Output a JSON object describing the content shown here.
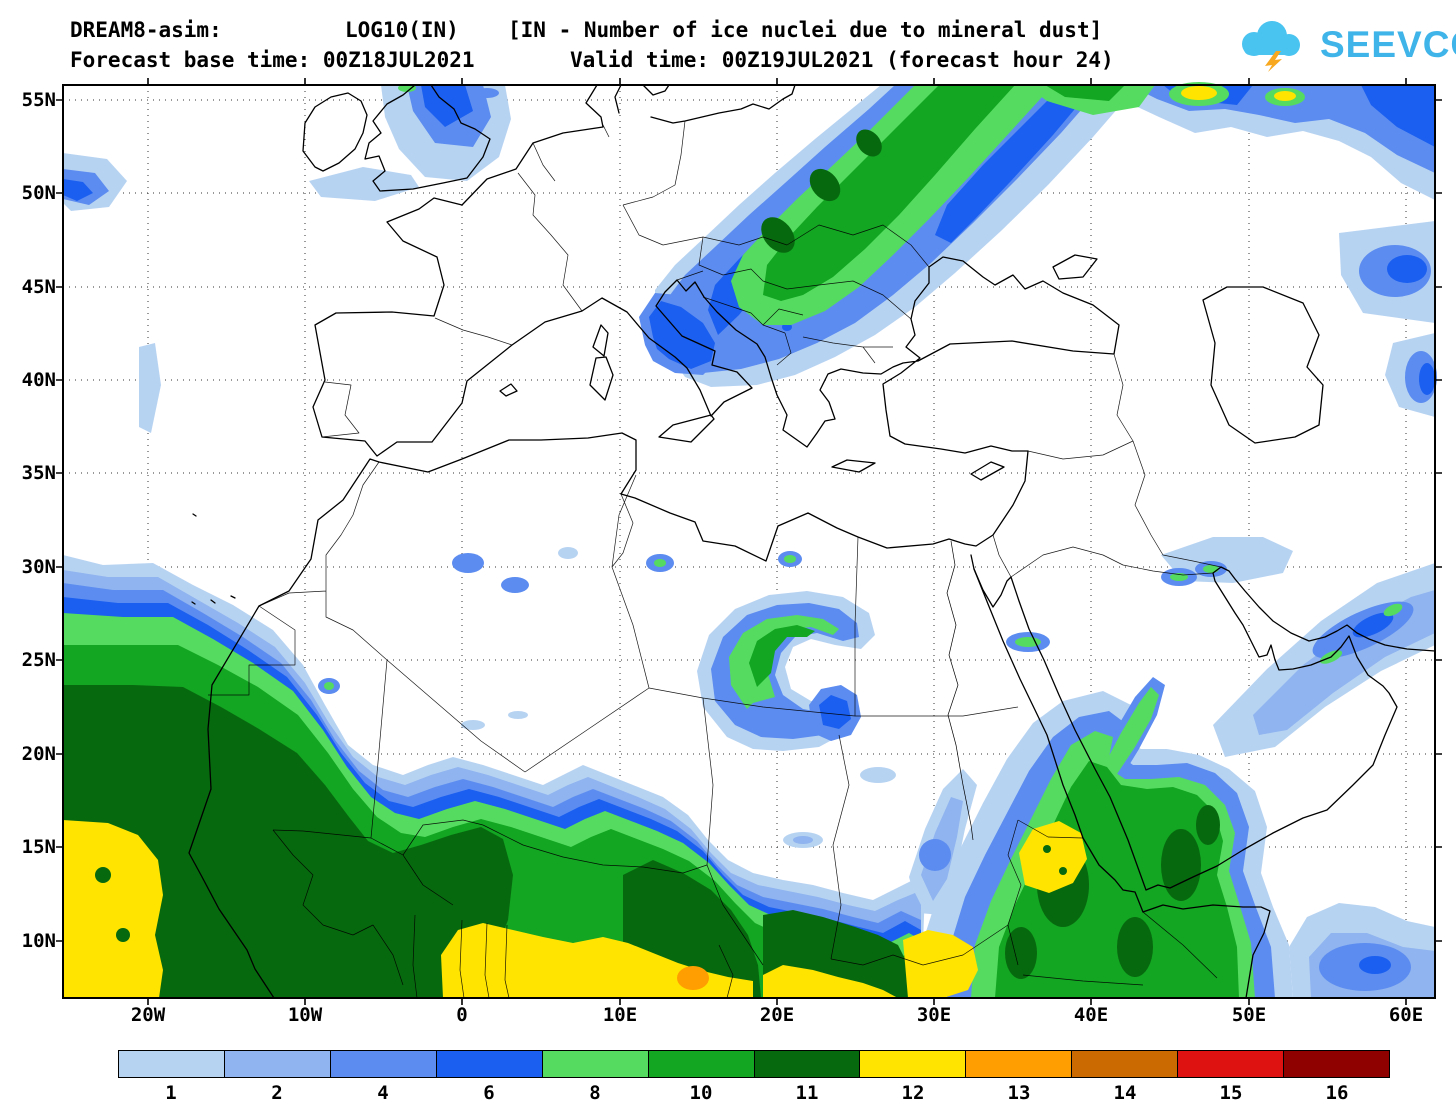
{
  "header": {
    "model": "DREAM8-asim:",
    "variable": "LOG10(IN)",
    "description": "[IN - Number of ice nuclei due to mineral dust]",
    "base_time_label": "Forecast base time: 00Z18JUL2021",
    "valid_time_label": "Valid time: 00Z19JUL2021 (forecast hour 24)"
  },
  "logo": {
    "text": "SEEVCCC",
    "cloud_color": "#49c3f0",
    "bolt_color": "#f7a81e",
    "text_color": "#3fb4e8"
  },
  "map": {
    "lat_labels": [
      "55N",
      "50N",
      "45N",
      "40N",
      "35N",
      "30N",
      "25N",
      "20N",
      "15N",
      "10N"
    ],
    "lon_labels": [
      "20W",
      "10W",
      "0",
      "10E",
      "20E",
      "30E",
      "40E",
      "50E",
      "60E"
    ]
  },
  "chart_data": {
    "type": "heatmap",
    "title": "LOG10(IN) [IN - Number of ice nuclei due to mineral dust]",
    "model": "DREAM8-asim",
    "forecast_base_time": "00Z18JUL2021",
    "valid_time": "00Z19JUL2021",
    "forecast_hour": 24,
    "lon_axis": [
      "20W",
      "10W",
      "0",
      "10E",
      "20E",
      "30E",
      "40E",
      "50E",
      "60E"
    ],
    "lat_axis": [
      "55N",
      "50N",
      "45N",
      "40N",
      "35N",
      "30N",
      "25N",
      "20N",
      "15N",
      "10N"
    ],
    "levels": [
      1,
      2,
      4,
      6,
      8,
      10,
      11,
      12,
      13,
      14,
      15,
      16
    ],
    "level_colors": [
      "#b7d3f2",
      "#8fb4ef",
      "#5c8cf0",
      "#1a5ff0",
      "#55dc60",
      "#12a622",
      "#07690e",
      "#ffe400",
      "#ff9e00",
      "#cb6a00",
      "#df1212",
      "#8f0000"
    ],
    "main_features": "Dust ice-nuclei plume over Sahel and West Africa (levels 8-13), central Sahara arc, diagonal plume from Adriatic to NE Europe, patches over British Isles, Sudan-Ethiopia maximum with level 12 core, Persian Gulf band"
  },
  "colorbar": {
    "entries": [
      {
        "label": "1",
        "color": "#b7d3f2"
      },
      {
        "label": "2",
        "color": "#8fb4ef"
      },
      {
        "label": "4",
        "color": "#5c8cf0"
      },
      {
        "label": "6",
        "color": "#1a5ff0"
      },
      {
        "label": "8",
        "color": "#55dc60"
      },
      {
        "label": "10",
        "color": "#12a622"
      },
      {
        "label": "11",
        "color": "#07690e"
      },
      {
        "label": "12",
        "color": "#ffe400"
      },
      {
        "label": "13",
        "color": "#ff9e00"
      },
      {
        "label": "14",
        "color": "#cb6a00"
      },
      {
        "label": "15",
        "color": "#df1212"
      },
      {
        "label": "16",
        "color": "#8f0000"
      }
    ]
  }
}
